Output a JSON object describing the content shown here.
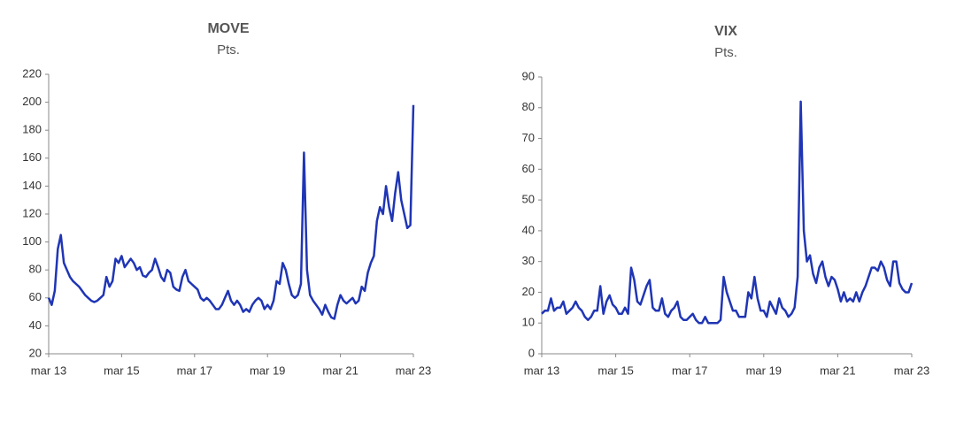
{
  "chart_data": [
    {
      "type": "line",
      "title": "MOVE",
      "subtitle": "Pts.",
      "categories": [
        "mar 13",
        null,
        null,
        null,
        null,
        null,
        null,
        null,
        null,
        null,
        null,
        null,
        null,
        null,
        null,
        null,
        null,
        null,
        null,
        null,
        null,
        null,
        null,
        null,
        "mar 15",
        null,
        null,
        null,
        null,
        null,
        null,
        null,
        null,
        null,
        null,
        null,
        null,
        null,
        null,
        null,
        null,
        null,
        null,
        null,
        null,
        null,
        null,
        null,
        "mar 17",
        null,
        null,
        null,
        null,
        null,
        null,
        null,
        null,
        null,
        null,
        null,
        null,
        null,
        null,
        null,
        null,
        null,
        null,
        null,
        null,
        null,
        null,
        null,
        "mar 19",
        null,
        null,
        null,
        null,
        null,
        null,
        null,
        null,
        null,
        null,
        null,
        null,
        null,
        null,
        null,
        null,
        null,
        null,
        null,
        null,
        null,
        null,
        null,
        "mar 21",
        null,
        null,
        null,
        null,
        null,
        null,
        null,
        null,
        null,
        null,
        null,
        null,
        null,
        null,
        null,
        null,
        null,
        null,
        null,
        null,
        null,
        null,
        null,
        "mar 23"
      ],
      "series": [
        {
          "name": "MOVE",
          "color": "#1f35b5",
          "values": [
            60,
            55,
            65,
            95,
            105,
            85,
            80,
            75,
            72,
            70,
            68,
            65,
            62,
            60,
            58,
            57,
            58,
            60,
            62,
            75,
            68,
            72,
            88,
            85,
            90,
            82,
            85,
            88,
            85,
            80,
            82,
            76,
            75,
            78,
            80,
            88,
            82,
            75,
            72,
            80,
            78,
            68,
            66,
            65,
            75,
            80,
            72,
            70,
            68,
            66,
            60,
            58,
            60,
            58,
            55,
            52,
            52,
            55,
            60,
            65,
            58,
            55,
            58,
            55,
            50,
            52,
            50,
            55,
            58,
            60,
            58,
            52,
            55,
            52,
            58,
            72,
            70,
            85,
            80,
            70,
            62,
            60,
            62,
            70,
            164,
            80,
            62,
            58,
            55,
            52,
            48,
            55,
            50,
            46,
            45,
            55,
            62,
            58,
            56,
            58,
            60,
            56,
            58,
            68,
            65,
            78,
            85,
            90,
            115,
            125,
            120,
            140,
            125,
            115,
            135,
            150,
            130,
            120,
            110,
            112,
            198
          ]
        }
      ],
      "ylim": [
        20,
        220
      ],
      "yticks": [
        20,
        40,
        60,
        80,
        100,
        120,
        140,
        160,
        180,
        200,
        220
      ]
    },
    {
      "type": "line",
      "title": "VIX",
      "subtitle": "Pts.",
      "categories": [
        "mar 13",
        null,
        null,
        null,
        null,
        null,
        null,
        null,
        null,
        null,
        null,
        null,
        null,
        null,
        null,
        null,
        null,
        null,
        null,
        null,
        null,
        null,
        null,
        null,
        "mar 15",
        null,
        null,
        null,
        null,
        null,
        null,
        null,
        null,
        null,
        null,
        null,
        null,
        null,
        null,
        null,
        null,
        null,
        null,
        null,
        null,
        null,
        null,
        null,
        "mar 17",
        null,
        null,
        null,
        null,
        null,
        null,
        null,
        null,
        null,
        null,
        null,
        null,
        null,
        null,
        null,
        null,
        null,
        null,
        null,
        null,
        null,
        null,
        null,
        "mar 19",
        null,
        null,
        null,
        null,
        null,
        null,
        null,
        null,
        null,
        null,
        null,
        null,
        null,
        null,
        null,
        null,
        null,
        null,
        null,
        null,
        null,
        null,
        null,
        "mar 21",
        null,
        null,
        null,
        null,
        null,
        null,
        null,
        null,
        null,
        null,
        null,
        null,
        null,
        null,
        null,
        null,
        null,
        null,
        null,
        null,
        null,
        null,
        null,
        "mar 23"
      ],
      "series": [
        {
          "name": "VIX",
          "color": "#1f35b5",
          "values": [
            13,
            14,
            14,
            18,
            14,
            15,
            15,
            17,
            13,
            14,
            15,
            17,
            15,
            14,
            12,
            11,
            12,
            14,
            14,
            22,
            13,
            17,
            19,
            16,
            15,
            13,
            13,
            15,
            13,
            28,
            24,
            17,
            16,
            19,
            22,
            24,
            15,
            14,
            14,
            18,
            13,
            12,
            14,
            15,
            17,
            12,
            11,
            11,
            12,
            13,
            11,
            10,
            10,
            12,
            10,
            10,
            10,
            10,
            11,
            25,
            20,
            17,
            14,
            14,
            12,
            12,
            12,
            20,
            18,
            25,
            18,
            14,
            14,
            12,
            17,
            15,
            13,
            18,
            15,
            14,
            12,
            13,
            15,
            25,
            82,
            40,
            30,
            32,
            26,
            23,
            28,
            30,
            25,
            22,
            25,
            24,
            21,
            17,
            20,
            17,
            18,
            17,
            20,
            17,
            20,
            22,
            25,
            28,
            28,
            27,
            30,
            28,
            24,
            22,
            30,
            30,
            23,
            21,
            20,
            20,
            23
          ]
        }
      ],
      "ylim": [
        0,
        90
      ],
      "yticks": [
        0,
        10,
        20,
        30,
        40,
        50,
        60,
        70,
        80,
        90
      ]
    }
  ]
}
